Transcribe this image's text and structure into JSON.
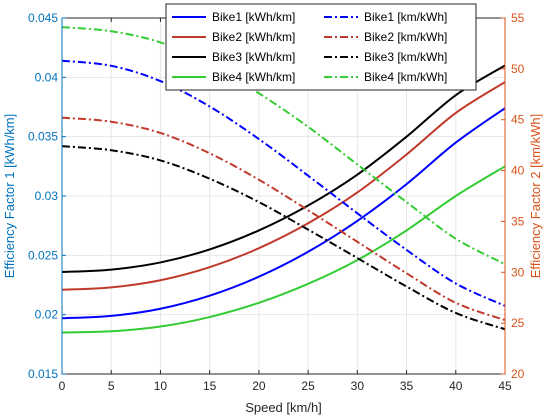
{
  "chart_data": {
    "type": "line",
    "xlabel": "Speed [km/h]",
    "ylabel_left": "Efficiency Factor 1 [kWh/km]",
    "ylabel_right": "Efficiency Factor 2 [km/kWh]",
    "xlim": [
      0,
      45
    ],
    "ylim_left": [
      0.015,
      0.045
    ],
    "ylim_right": [
      20,
      55
    ],
    "xticks": [
      "0",
      "5",
      "10",
      "15",
      "20",
      "25",
      "30",
      "35",
      "40",
      "45"
    ],
    "yticks_left": [
      "0.015",
      "0.02",
      "0.025",
      "0.03",
      "0.035",
      "0.04",
      "0.045"
    ],
    "yticks_right": [
      "20",
      "25",
      "30",
      "35",
      "40",
      "45",
      "50",
      "55"
    ],
    "grid": true,
    "legend_position": "top-right",
    "x": [
      0,
      5,
      10,
      15,
      20,
      25,
      30,
      35,
      40,
      45
    ],
    "series": [
      {
        "name": "Bike1 [kWh/km]",
        "axis": "left",
        "style": "solid",
        "color": "#0000ff",
        "values": [
          0.0197,
          0.0199,
          0.0205,
          0.0216,
          0.0232,
          0.0253,
          0.0279,
          0.031,
          0.0345,
          0.0374
        ]
      },
      {
        "name": "Bike2 [kWh/km]",
        "axis": "left",
        "style": "solid",
        "color": "#c0392b",
        "values": [
          0.0221,
          0.0223,
          0.0229,
          0.024,
          0.0256,
          0.0277,
          0.0303,
          0.0335,
          0.037,
          0.0396
        ]
      },
      {
        "name": "Bike3 [kWh/km]",
        "axis": "left",
        "style": "solid",
        "color": "#000000",
        "values": [
          0.0236,
          0.0238,
          0.0244,
          0.0255,
          0.0271,
          0.0292,
          0.0318,
          0.035,
          0.0385,
          0.041
        ]
      },
      {
        "name": "Bike4 [kWh/km]",
        "axis": "left",
        "style": "solid",
        "color": "#33cc33",
        "values": [
          0.0185,
          0.0186,
          0.019,
          0.0198,
          0.021,
          0.0226,
          0.0246,
          0.0271,
          0.03,
          0.0325
        ]
      },
      {
        "name": "Bike1 [km/kWh]",
        "axis": "right",
        "style": "dashdot",
        "color": "#0000ff",
        "values": [
          50.8,
          50.3,
          48.8,
          46.3,
          43.1,
          39.5,
          35.8,
          32.2,
          28.9,
          26.7
        ]
      },
      {
        "name": "Bike2 [km/kWh]",
        "axis": "right",
        "style": "dashdot",
        "color": "#c0392b",
        "values": [
          45.2,
          44.8,
          43.7,
          41.7,
          39.1,
          36.1,
          33.0,
          29.9,
          27.0,
          25.3
        ]
      },
      {
        "name": "Bike3 [km/kWh]",
        "axis": "right",
        "style": "dashdot",
        "color": "#000000",
        "values": [
          42.4,
          42.0,
          41.0,
          39.2,
          36.9,
          34.2,
          31.4,
          28.6,
          26.0,
          24.4
        ]
      },
      {
        "name": "Bike4 [km/kWh]",
        "axis": "right",
        "style": "dashdot",
        "color": "#33cc33",
        "values": [
          54.1,
          53.7,
          52.6,
          50.5,
          47.6,
          44.3,
          40.6,
          36.9,
          33.3,
          30.8
        ]
      }
    ]
  },
  "colors": {
    "left_axis": "#0072bd",
    "right_axis": "#d95319",
    "grid": "#e6e6e6"
  }
}
